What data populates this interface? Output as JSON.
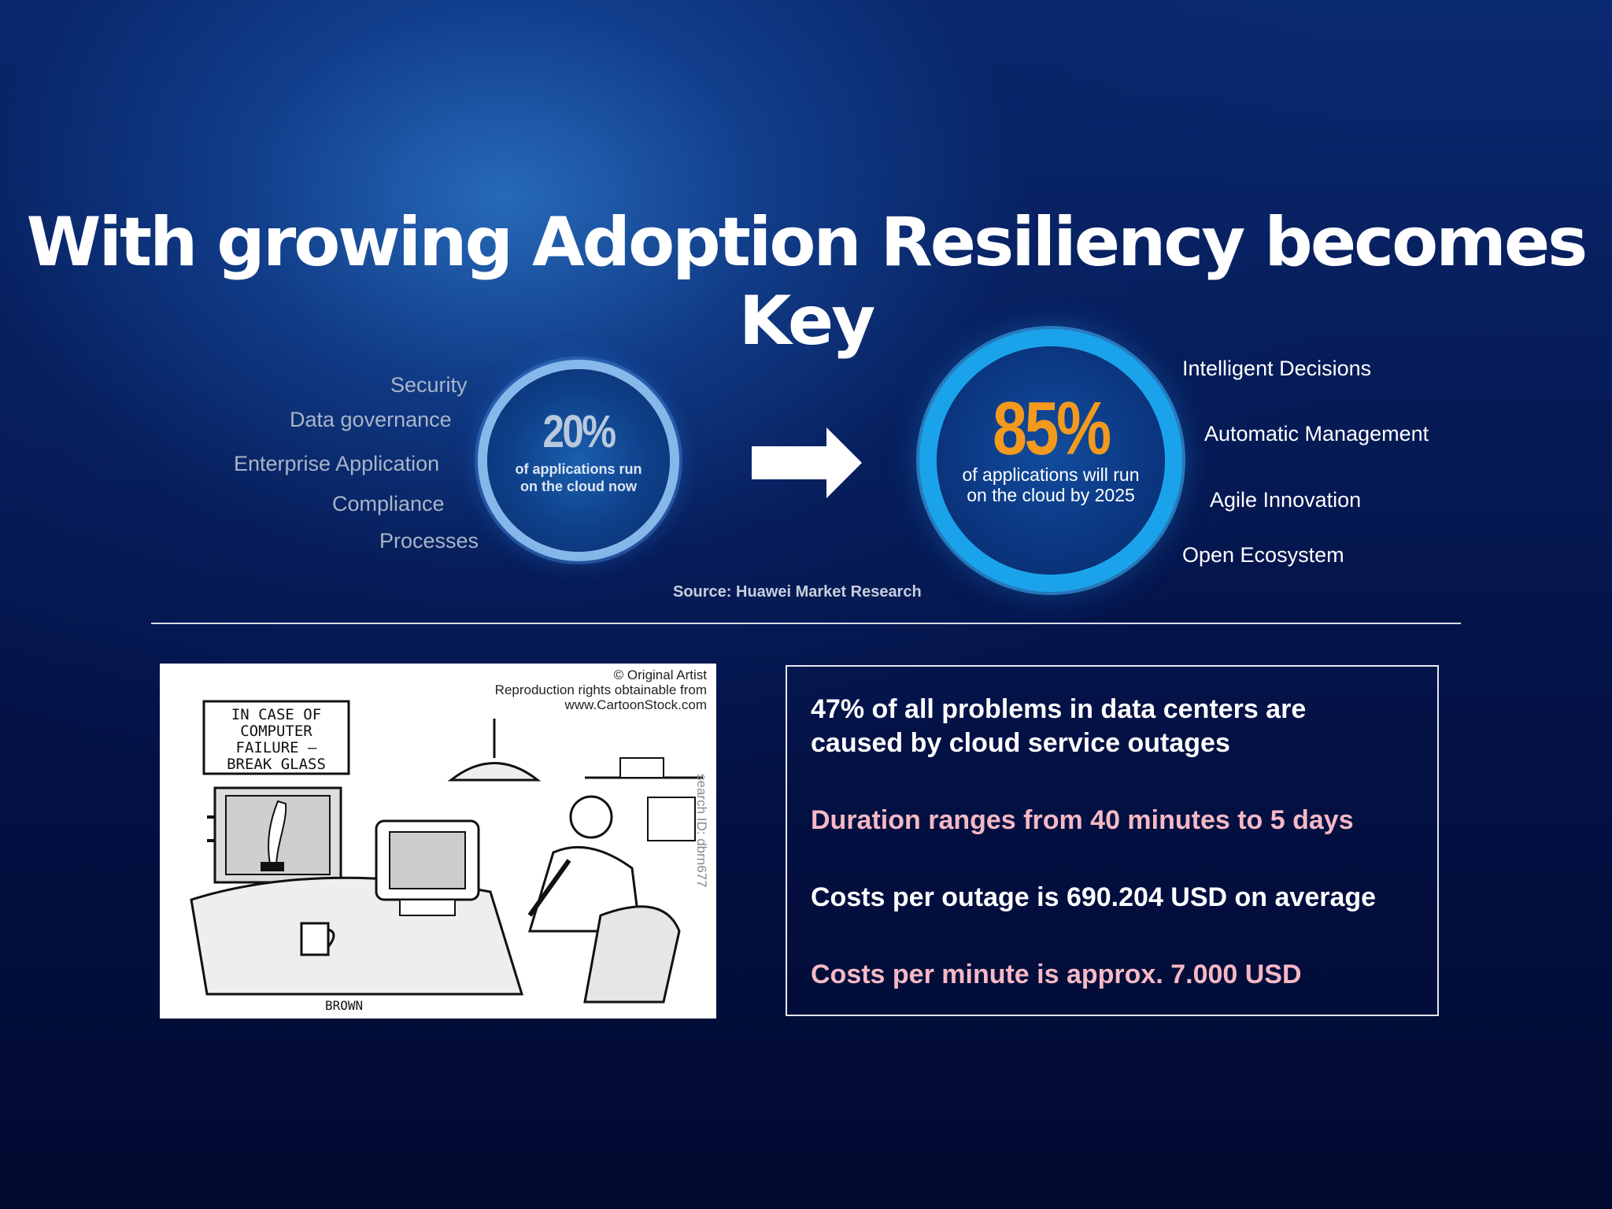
{
  "title": "With growing Adoption Resiliency becomes Key",
  "left_list": [
    "Security",
    "Data governance",
    "Enterprise Application",
    "Compliance",
    "Processes"
  ],
  "current": {
    "percent": "20%",
    "caption_line1": "of applications run",
    "caption_line2": "on the cloud now"
  },
  "future": {
    "percent": "85%",
    "caption_line1": "of applications will run",
    "caption_line2": "on the cloud by 2025"
  },
  "right_list": [
    "Intelligent Decisions",
    "Automatic Management",
    "Agile Innovation",
    "Open Ecosystem"
  ],
  "source": "Source: Huawei Market Research",
  "cartoon": {
    "copyright_line1": "© Original Artist",
    "copyright_line2": "Reproduction rights obtainable from",
    "copyright_line3": "www.CartoonStock.com",
    "sign_line1": "IN CASE OF",
    "sign_line2": "COMPUTER",
    "sign_line3": "FAILURE –",
    "sign_line4": "BREAK GLASS",
    "search_id": "search ID: dbrn677",
    "signature": "BROWN"
  },
  "stats": {
    "line1a": "47% of all problems in data centers are",
    "line1b": "caused by cloud service outages",
    "line2": "Duration ranges from 40 minutes to 5 days",
    "line3": "Costs per outage is 690.204 USD on average",
    "line4": "Costs per minute is approx. 7.000 USD"
  },
  "colors": {
    "accent_orange": "#f39a1e",
    "ring_blue": "#1aa3ea",
    "highlight_pink": "#f5b8c4",
    "background": "#031043"
  }
}
